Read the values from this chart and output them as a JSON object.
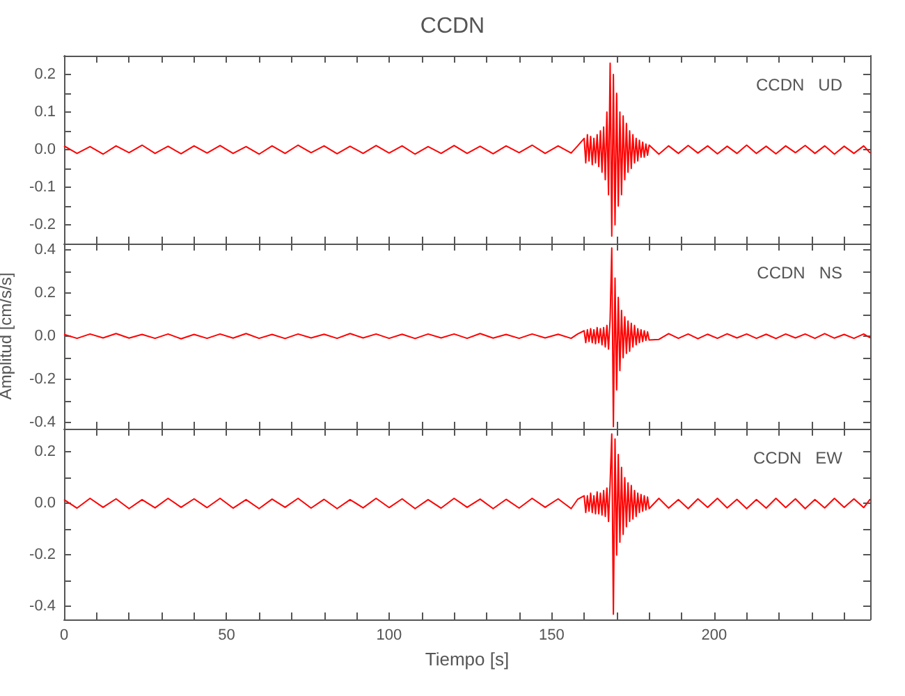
{
  "chart_data": [
    {
      "type": "line",
      "title": "CCDN",
      "annotations": [
        "CCDN   UD"
      ],
      "tick_labels": "y",
      "xlim": [
        0,
        248
      ],
      "xticks": [
        0,
        {
          "value": 10,
          "label": null
        },
        {
          "value": 20,
          "label": null
        },
        {
          "value": 30,
          "label": null
        },
        {
          "value": 40,
          "label": null
        },
        50,
        {
          "value": 60,
          "label": null
        },
        {
          "value": 70,
          "label": null
        },
        {
          "value": 80,
          "label": null
        },
        {
          "value": 90,
          "label": null
        },
        100,
        {
          "value": 110,
          "label": null
        },
        {
          "value": 120,
          "label": null
        },
        {
          "value": 130,
          "label": null
        },
        {
          "value": 140,
          "label": null
        },
        150,
        {
          "value": 160,
          "label": null
        },
        {
          "value": 170,
          "label": null
        },
        {
          "value": 180,
          "label": null
        },
        {
          "value": 190,
          "label": null
        },
        200,
        {
          "value": 210,
          "label": null
        },
        {
          "value": 220,
          "label": null
        },
        {
          "value": 230,
          "label": null
        },
        {
          "value": 240,
          "label": null
        }
      ],
      "ylim": [
        -0.25,
        0.25
      ],
      "yticks": [
        {
          "value": -0.2,
          "label": "-0.2"
        },
        {
          "value": -0.15,
          "label": null
        },
        {
          "value": -0.1,
          "label": "-0.1"
        },
        {
          "value": -0.05,
          "label": null
        },
        {
          "value": 0,
          "label": "0.0"
        },
        {
          "value": 0.05,
          "label": null
        },
        {
          "value": 0.1,
          "label": "0.1"
        },
        {
          "value": 0.15,
          "label": null
        },
        {
          "value": 0.2,
          "label": "0.2"
        }
      ],
      "x": [
        0,
        4,
        8,
        12,
        16,
        20,
        24,
        28,
        32,
        36,
        40,
        44,
        48,
        52,
        56,
        60,
        64,
        68,
        72,
        76,
        80,
        84,
        88,
        92,
        96,
        100,
        104,
        108,
        112,
        116,
        120,
        124,
        128,
        132,
        136,
        140,
        144,
        148,
        152,
        156,
        158,
        160,
        160.5,
        161,
        161.5,
        162,
        162.5,
        163,
        163.5,
        164,
        164.5,
        165,
        165.5,
        166,
        166.5,
        167,
        167.5,
        168,
        168.5,
        169,
        169.5,
        170,
        170.5,
        171,
        171.5,
        172,
        172.5,
        173,
        173.5,
        174,
        174.5,
        175,
        175.5,
        176,
        176.5,
        177,
        177.5,
        178,
        178.5,
        179,
        179.5,
        180,
        183,
        186,
        189,
        192,
        195,
        198,
        201,
        204,
        207,
        210,
        213,
        216,
        219,
        222,
        225,
        228,
        231,
        234,
        237,
        240,
        243,
        246,
        248
      ],
      "series": [
        {
          "color": "#ff0000",
          "values": [
            0.01,
            -0.01,
            0.008,
            -0.012,
            0.01,
            -0.008,
            0.012,
            -0.01,
            0.009,
            -0.011,
            0.01,
            -0.009,
            0.011,
            -0.01,
            0.008,
            -0.012,
            0.01,
            -0.01,
            0.012,
            -0.008,
            0.01,
            -0.011,
            0.009,
            -0.01,
            0.011,
            -0.009,
            0.01,
            -0.012,
            0.008,
            -0.01,
            0.011,
            -0.01,
            0.009,
            -0.011,
            0.01,
            -0.008,
            0.012,
            -0.01,
            0.01,
            -0.009,
            0.01,
            0.03,
            -0.035,
            0.04,
            -0.03,
            0.035,
            -0.04,
            0.03,
            -0.035,
            0.04,
            -0.045,
            0.05,
            -0.06,
            0.06,
            -0.08,
            0.1,
            -0.12,
            0.23,
            -0.23,
            0.2,
            -0.2,
            0.15,
            -0.15,
            0.1,
            -0.12,
            0.09,
            -0.08,
            0.07,
            -0.06,
            0.05,
            -0.05,
            0.04,
            -0.035,
            0.03,
            -0.03,
            0.025,
            -0.02,
            0.02,
            -0.02,
            0.015,
            -0.015,
            0.012,
            -0.012,
            0.01,
            -0.01,
            0.011,
            -0.009,
            0.01,
            -0.011,
            0.009,
            -0.01,
            0.012,
            -0.01,
            0.009,
            -0.011,
            0.01,
            -0.008,
            0.011,
            -0.01,
            0.01,
            -0.012,
            0.009,
            -0.01,
            0.01,
            -0.009
          ]
        }
      ]
    },
    {
      "type": "line",
      "ylabel": "Amplitud [cm/s/s]",
      "annotations": [
        "CCDN   NS"
      ],
      "tick_labels": "y",
      "xlim": [
        0,
        248
      ],
      "xticks": [
        0,
        {
          "value": 10,
          "label": null
        },
        {
          "value": 20,
          "label": null
        },
        {
          "value": 30,
          "label": null
        },
        {
          "value": 40,
          "label": null
        },
        50,
        {
          "value": 60,
          "label": null
        },
        {
          "value": 70,
          "label": null
        },
        {
          "value": 80,
          "label": null
        },
        {
          "value": 90,
          "label": null
        },
        100,
        {
          "value": 110,
          "label": null
        },
        {
          "value": 120,
          "label": null
        },
        {
          "value": 130,
          "label": null
        },
        {
          "value": 140,
          "label": null
        },
        150,
        {
          "value": 160,
          "label": null
        },
        {
          "value": 170,
          "label": null
        },
        {
          "value": 180,
          "label": null
        },
        {
          "value": 190,
          "label": null
        },
        200,
        {
          "value": 210,
          "label": null
        },
        {
          "value": 220,
          "label": null
        },
        {
          "value": 230,
          "label": null
        },
        {
          "value": 240,
          "label": null
        }
      ],
      "ylim": [
        -0.43,
        0.43
      ],
      "yticks": [
        {
          "value": -0.4,
          "label": "-0.4"
        },
        {
          "value": -0.3,
          "label": null
        },
        {
          "value": -0.2,
          "label": "-0.2"
        },
        {
          "value": -0.1,
          "label": null
        },
        {
          "value": 0,
          "label": "0.0"
        },
        {
          "value": 0.1,
          "label": null
        },
        {
          "value": 0.2,
          "label": "0.2"
        },
        {
          "value": 0.3,
          "label": null
        },
        {
          "value": 0.4,
          "label": "0.4"
        }
      ],
      "x": [
        0,
        4,
        8,
        12,
        16,
        20,
        24,
        28,
        32,
        36,
        40,
        44,
        48,
        52,
        56,
        60,
        64,
        68,
        72,
        76,
        80,
        84,
        88,
        92,
        96,
        100,
        104,
        108,
        112,
        116,
        120,
        124,
        128,
        132,
        136,
        140,
        144,
        148,
        152,
        156,
        158,
        160,
        160.5,
        161,
        161.5,
        162,
        162.5,
        163,
        163.5,
        164,
        164.5,
        165,
        165.5,
        166,
        166.5,
        167,
        167.5,
        168,
        168.5,
        169,
        169.5,
        170,
        170.5,
        171,
        171.5,
        172,
        172.5,
        173,
        173.5,
        174,
        174.5,
        175,
        175.5,
        176,
        176.5,
        177,
        177.5,
        178,
        178.5,
        179,
        179.5,
        180,
        183,
        186,
        189,
        192,
        195,
        198,
        201,
        204,
        207,
        210,
        213,
        216,
        219,
        222,
        225,
        228,
        231,
        234,
        237,
        240,
        243,
        246,
        248
      ],
      "series": [
        {
          "color": "#ff0000",
          "values": [
            0.008,
            -0.01,
            0.01,
            -0.008,
            0.012,
            -0.009,
            0.008,
            -0.01,
            0.01,
            -0.012,
            0.008,
            -0.01,
            0.01,
            -0.009,
            0.012,
            -0.01,
            0.008,
            -0.011,
            0.01,
            -0.008,
            0.009,
            -0.01,
            0.012,
            -0.008,
            0.01,
            -0.01,
            0.009,
            -0.011,
            0.01,
            -0.008,
            0.01,
            -0.01,
            0.012,
            -0.009,
            0.008,
            -0.01,
            0.01,
            -0.008,
            0.009,
            -0.01,
            0.01,
            0.025,
            -0.03,
            0.03,
            -0.025,
            0.035,
            -0.03,
            0.03,
            -0.035,
            0.04,
            -0.03,
            0.035,
            -0.04,
            0.04,
            -0.05,
            0.05,
            -0.06,
            0.08,
            0.41,
            -0.42,
            0.27,
            -0.25,
            0.18,
            -0.16,
            0.12,
            -0.1,
            0.09,
            -0.08,
            0.07,
            -0.07,
            0.06,
            -0.05,
            0.05,
            -0.04,
            0.035,
            -0.03,
            0.03,
            -0.025,
            0.025,
            -0.02,
            0.02,
            -0.018,
            -0.015,
            0.012,
            -0.01,
            0.01,
            -0.012,
            0.009,
            -0.01,
            0.011,
            -0.008,
            0.01,
            -0.01,
            0.009,
            -0.011,
            0.01,
            -0.008,
            0.01,
            -0.01,
            0.012,
            -0.009,
            0.008,
            -0.01,
            0.01,
            -0.008
          ]
        }
      ]
    },
    {
      "type": "line",
      "xlabel": "Tiempo [s]",
      "annotations": [
        "CCDN   EW"
      ],
      "xlim": [
        0,
        248
      ],
      "xticks": [
        0,
        {
          "value": 10,
          "label": null
        },
        {
          "value": 20,
          "label": null
        },
        {
          "value": 30,
          "label": null
        },
        {
          "value": 40,
          "label": null
        },
        50,
        {
          "value": 60,
          "label": null
        },
        {
          "value": 70,
          "label": null
        },
        {
          "value": 80,
          "label": null
        },
        {
          "value": 90,
          "label": null
        },
        100,
        {
          "value": 110,
          "label": null
        },
        {
          "value": 120,
          "label": null
        },
        {
          "value": 130,
          "label": null
        },
        {
          "value": 140,
          "label": null
        },
        150,
        {
          "value": 160,
          "label": null
        },
        {
          "value": 170,
          "label": null
        },
        {
          "value": 180,
          "label": null
        },
        {
          "value": 190,
          "label": null
        },
        200,
        {
          "value": 210,
          "label": null
        },
        {
          "value": 220,
          "label": null
        },
        {
          "value": 230,
          "label": null
        },
        {
          "value": 240,
          "label": null
        }
      ],
      "ylim": [
        -0.45,
        0.29
      ],
      "yticks": [
        {
          "value": -0.4,
          "label": "-0.4"
        },
        {
          "value": -0.3,
          "label": null
        },
        {
          "value": -0.2,
          "label": "-0.2"
        },
        {
          "value": -0.1,
          "label": null
        },
        {
          "value": 0,
          "label": "0.0"
        },
        {
          "value": 0.1,
          "label": null
        },
        {
          "value": 0.2,
          "label": "0.2"
        }
      ],
      "x": [
        0,
        4,
        8,
        12,
        16,
        20,
        24,
        28,
        32,
        36,
        40,
        44,
        48,
        52,
        56,
        60,
        64,
        68,
        72,
        76,
        80,
        84,
        88,
        92,
        96,
        100,
        104,
        108,
        112,
        116,
        120,
        124,
        128,
        132,
        136,
        140,
        144,
        148,
        152,
        156,
        158,
        160,
        160.5,
        161,
        161.5,
        162,
        162.5,
        163,
        163.5,
        164,
        164.5,
        165,
        165.5,
        166,
        166.5,
        167,
        167.5,
        168,
        168.5,
        169,
        169.5,
        170,
        170.5,
        171,
        171.5,
        172,
        172.5,
        173,
        173.5,
        174,
        174.5,
        175,
        175.5,
        176,
        176.5,
        177,
        177.5,
        178,
        178.5,
        179,
        179.5,
        180,
        183,
        186,
        189,
        192,
        195,
        198,
        201,
        204,
        207,
        210,
        213,
        216,
        219,
        222,
        225,
        228,
        231,
        234,
        237,
        240,
        243,
        246,
        248
      ],
      "series": [
        {
          "color": "#ff0000",
          "values": [
            0.015,
            -0.018,
            0.02,
            -0.015,
            0.018,
            -0.02,
            0.015,
            -0.017,
            0.02,
            -0.015,
            0.018,
            -0.016,
            0.02,
            -0.018,
            0.015,
            -0.02,
            0.017,
            -0.015,
            0.02,
            -0.018,
            0.016,
            -0.02,
            0.015,
            -0.017,
            0.02,
            -0.016,
            0.018,
            -0.02,
            0.015,
            -0.018,
            0.02,
            -0.015,
            0.017,
            -0.02,
            0.016,
            -0.018,
            0.02,
            -0.015,
            0.018,
            -0.02,
            0.016,
            0.03,
            -0.035,
            0.03,
            -0.03,
            0.04,
            -0.035,
            0.03,
            -0.04,
            0.045,
            -0.04,
            0.04,
            -0.045,
            0.05,
            -0.05,
            0.06,
            -0.07,
            0.08,
            0.27,
            -0.43,
            0.25,
            -0.2,
            0.19,
            -0.15,
            0.14,
            -0.12,
            0.1,
            -0.09,
            0.08,
            -0.07,
            0.07,
            -0.06,
            0.05,
            -0.05,
            0.04,
            -0.035,
            0.035,
            -0.03,
            0.03,
            -0.025,
            0.025,
            -0.02,
            0.02,
            -0.018,
            0.015,
            -0.02,
            0.018,
            -0.015,
            0.02,
            -0.017,
            0.016,
            -0.02,
            0.015,
            -0.018,
            0.02,
            -0.016,
            0.018,
            -0.02,
            0.015,
            -0.017,
            0.02,
            -0.015,
            0.018,
            -0.016,
            0.017
          ]
        }
      ]
    }
  ]
}
